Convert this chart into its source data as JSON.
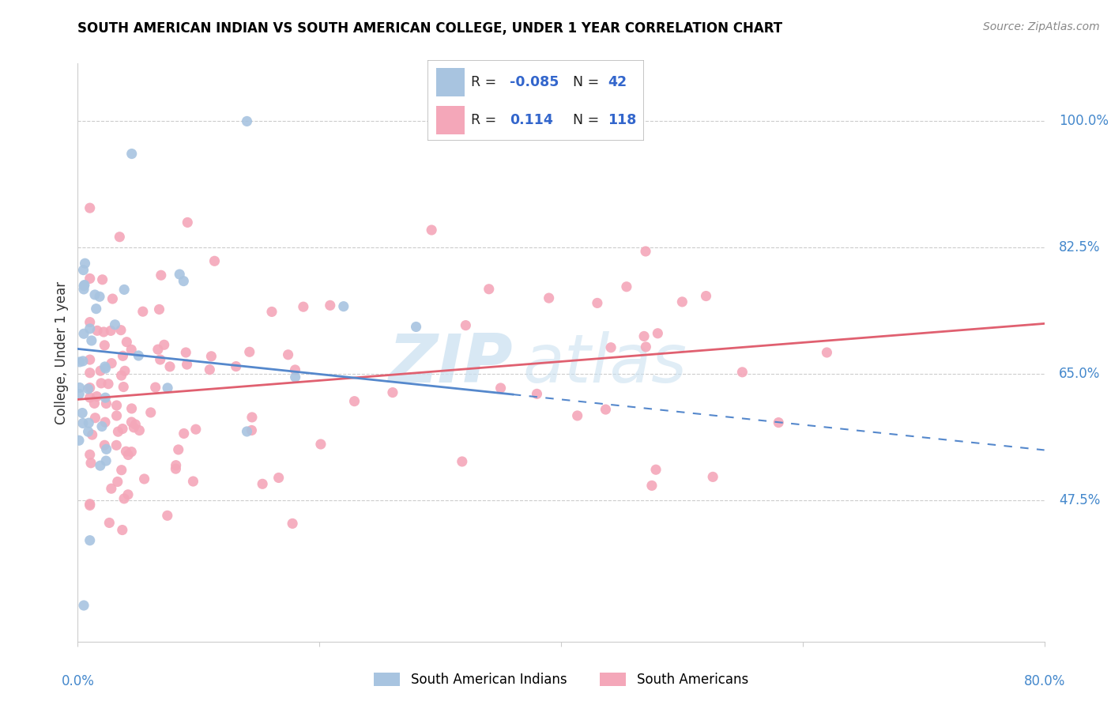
{
  "title": "SOUTH AMERICAN INDIAN VS SOUTH AMERICAN COLLEGE, UNDER 1 YEAR CORRELATION CHART",
  "source": "Source: ZipAtlas.com",
  "ylabel": "College, Under 1 year",
  "xlabel_left_label": "0.0%",
  "xlabel_right_label": "80.0%",
  "ytick_labels": [
    "47.5%",
    "65.0%",
    "82.5%",
    "100.0%"
  ],
  "ytick_values": [
    0.475,
    0.65,
    0.825,
    1.0
  ],
  "xmin": 0.0,
  "xmax": 0.8,
  "ymin": 0.28,
  "ymax": 1.08,
  "legend_R_blue": "-0.085",
  "legend_N_blue": "42",
  "legend_R_pink": "0.114",
  "legend_N_pink": "118",
  "blue_color": "#a8c4e0",
  "pink_color": "#f4a7b9",
  "trend_blue_color": "#5588cc",
  "trend_pink_color": "#e06070",
  "watermark_color": "#c8dff0",
  "blue_trend_x0": 0.0,
  "blue_trend_y0": 0.685,
  "blue_trend_x1": 0.8,
  "blue_trend_y1": 0.545,
  "pink_trend_x0": 0.0,
  "pink_trend_y0": 0.615,
  "pink_trend_x1": 0.8,
  "pink_trend_y1": 0.72
}
